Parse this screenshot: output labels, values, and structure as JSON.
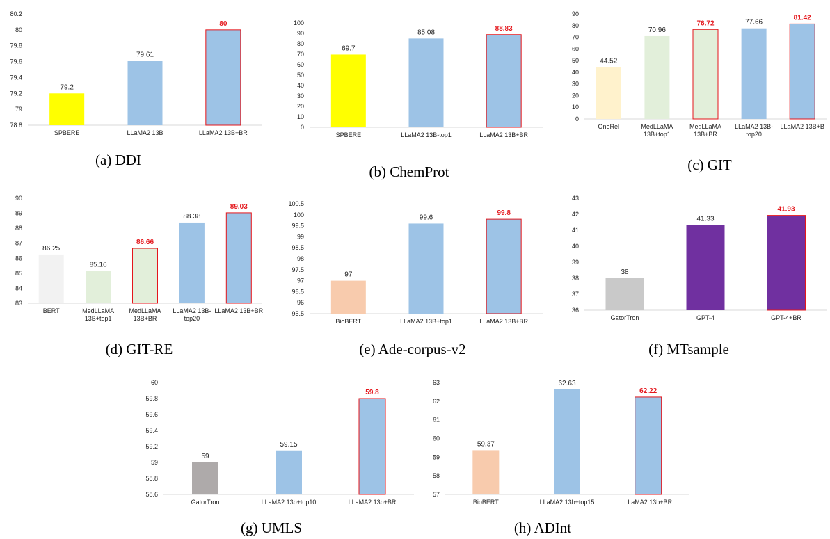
{
  "chart_data": [
    {
      "type": "bar",
      "caption": "(a)  DDI",
      "categories": [
        "SPBERE",
        "LLaMA2 13B",
        "LLaMA2 13B+BR"
      ],
      "values": [
        79.2,
        79.61,
        80
      ],
      "value_labels": [
        "79.2",
        "79.61",
        "80"
      ],
      "colors": [
        "#ffff00",
        "#9dc3e6",
        "#9dc3e6"
      ],
      "highlight": [
        false,
        false,
        true
      ],
      "ylim": [
        78.8,
        80.2
      ],
      "yticks": [
        "78.8",
        "79",
        "79.2",
        "79.4",
        "79.6",
        "79.8",
        "80",
        "80.2"
      ]
    },
    {
      "type": "bar",
      "caption": "(b)  ChemProt",
      "categories": [
        "SPBERE",
        "LLaMA2 13B-top1",
        "LLaMA2 13B+BR"
      ],
      "values": [
        69.7,
        85.08,
        88.83
      ],
      "value_labels": [
        "69.7",
        "85.08",
        "88.83"
      ],
      "colors": [
        "#ffff00",
        "#9dc3e6",
        "#9dc3e6"
      ],
      "highlight": [
        false,
        false,
        true
      ],
      "ylim": [
        0,
        100
      ],
      "yticks": [
        "0",
        "10",
        "20",
        "30",
        "40",
        "50",
        "60",
        "70",
        "80",
        "90",
        "100"
      ]
    },
    {
      "type": "bar",
      "caption": "(c)  GIT",
      "categories": [
        "OneRel",
        "MedLLaMA\n13B+top1",
        "MedLLaMA\n13B+BR",
        "LLaMA2 13B-\ntop20",
        "LLaMA2 13B+B"
      ],
      "values": [
        44.52,
        70.96,
        76.72,
        77.66,
        81.42
      ],
      "value_labels": [
        "44.52",
        "70.96",
        "76.72",
        "77.66",
        "81.42"
      ],
      "colors": [
        "#fff2cc",
        "#e2efda",
        "#e2efda",
        "#9dc3e6",
        "#9dc3e6"
      ],
      "highlight": [
        false,
        false,
        true,
        false,
        true
      ],
      "ylim": [
        0,
        90
      ],
      "yticks": [
        "0",
        "10",
        "20",
        "30",
        "40",
        "50",
        "60",
        "70",
        "80",
        "90"
      ]
    },
    {
      "type": "bar",
      "caption": "(d)  GIT-RE",
      "categories": [
        "BERT",
        "MedLLaMA\n13B+top1",
        "MedLLaMA\n13B+BR",
        "LLaMA2 13B-\ntop20",
        "LLaMA2 13B+BR"
      ],
      "values": [
        86.25,
        85.16,
        86.66,
        88.38,
        89.03
      ],
      "value_labels": [
        "86.25",
        "85.16",
        "86.66",
        "88.38",
        "89.03"
      ],
      "colors": [
        "#f2f2f2",
        "#e2efda",
        "#e2efda",
        "#9dc3e6",
        "#9dc3e6"
      ],
      "highlight": [
        false,
        false,
        true,
        false,
        true
      ],
      "ylim": [
        83,
        90
      ],
      "yticks": [
        "83",
        "84",
        "85",
        "86",
        "87",
        "88",
        "89",
        "90"
      ]
    },
    {
      "type": "bar",
      "caption": "(e)  Ade-corpus-v2",
      "categories": [
        "BioBERT",
        "LLaMA2 13B+top1",
        "LLaMA2 13B+BR"
      ],
      "values": [
        97,
        99.6,
        99.8
      ],
      "value_labels": [
        "97",
        "99.6",
        "99.8"
      ],
      "colors": [
        "#f8cbad",
        "#9dc3e6",
        "#9dc3e6"
      ],
      "highlight": [
        false,
        false,
        true
      ],
      "ylim": [
        95.5,
        100.5
      ],
      "yticks": [
        "95.5",
        "96",
        "96.5",
        "97",
        "97.5",
        "98",
        "98.5",
        "99",
        "99.5",
        "100",
        "100.5"
      ]
    },
    {
      "type": "bar",
      "caption": "(f)  MTsample",
      "categories": [
        "GatorTron",
        "GPT-4",
        "GPT-4+BR"
      ],
      "values": [
        38,
        41.33,
        41.93
      ],
      "value_labels": [
        "38",
        "41.33",
        "41.93"
      ],
      "colors": [
        "#c9c9c9",
        "#7030a0",
        "#7030a0"
      ],
      "highlight": [
        false,
        false,
        true
      ],
      "ylim": [
        36,
        43
      ],
      "yticks": [
        "36",
        "37",
        "38",
        "39",
        "40",
        "41",
        "42",
        "43"
      ]
    },
    {
      "type": "bar",
      "caption": "(g)  UMLS",
      "categories": [
        "GatorTron",
        "LLaMA2 13b+top10",
        "LLaMA2 13b+BR"
      ],
      "values": [
        59,
        59.15,
        59.8
      ],
      "value_labels": [
        "59",
        "59.15",
        "59.8"
      ],
      "colors": [
        "#aeaaaa",
        "#9dc3e6",
        "#9dc3e6"
      ],
      "highlight": [
        false,
        false,
        true
      ],
      "ylim": [
        58.6,
        60
      ],
      "yticks": [
        "58.6",
        "58.8",
        "59",
        "59.2",
        "59.4",
        "59.6",
        "59.8",
        "60"
      ]
    },
    {
      "type": "bar",
      "caption": "(h)  ADInt",
      "categories": [
        "BioBERT",
        "LLaMA2 13b+top15",
        "LLaMA2 13b+BR"
      ],
      "values": [
        59.37,
        62.63,
        62.22
      ],
      "value_labels": [
        "59.37",
        "62.63",
        "62.22"
      ],
      "colors": [
        "#f8cbad",
        "#9dc3e6",
        "#9dc3e6"
      ],
      "highlight": [
        false,
        false,
        true
      ],
      "ylim": [
        57,
        63
      ],
      "yticks": [
        "57",
        "58",
        "59",
        "60",
        "61",
        "62",
        "63"
      ]
    }
  ]
}
